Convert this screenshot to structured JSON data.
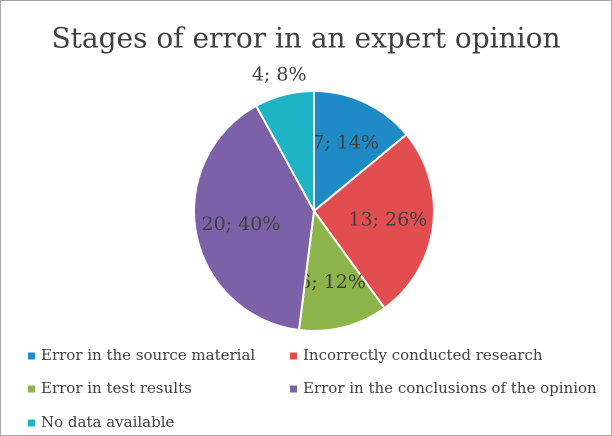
{
  "chart_data": {
    "type": "pie",
    "title": "Stages of error in an expert opinion",
    "categories": [
      "Error in the source material",
      "Incorrectly conducted research",
      "Error in test results",
      "Error in the conclusions of the opinion",
      "No data available"
    ],
    "values": [
      7,
      13,
      6,
      20,
      4
    ],
    "value_labels": [
      "7; 14%",
      "13; 26%",
      "6; 12%",
      "20; 40%",
      "4; 8%"
    ],
    "colors": [
      "#1f8bc6",
      "#e24e4f",
      "#8cb44a",
      "#7c60a8",
      "#1fb3c6"
    ],
    "legend": "bottom"
  }
}
